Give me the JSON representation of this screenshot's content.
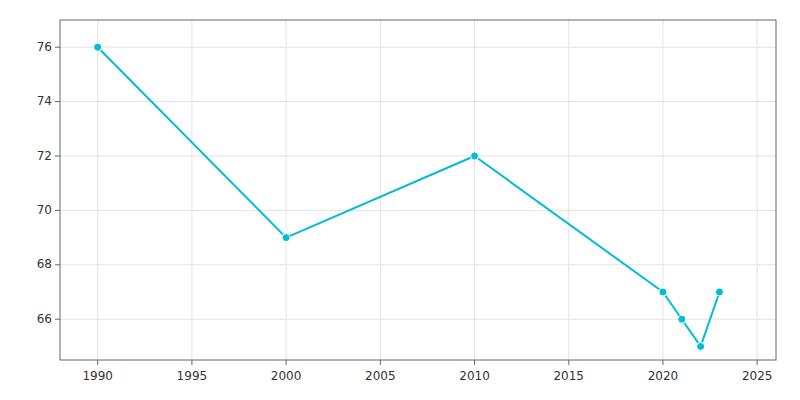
{
  "chart_data": {
    "type": "line",
    "x": [
      1990,
      2000,
      2010,
      2020,
      2021,
      2022,
      2023
    ],
    "values": [
      76,
      69,
      72,
      67,
      66,
      65,
      67
    ],
    "color": "#00bcd4",
    "marker": "circle",
    "line_style": "solid",
    "xlim": [
      1988,
      2026
    ],
    "ylim": [
      64.5,
      77
    ],
    "xticks": [
      1990,
      1995,
      2000,
      2005,
      2010,
      2015,
      2020,
      2025
    ],
    "yticks": [
      66,
      68,
      70,
      72,
      74,
      76
    ],
    "grid": true
  }
}
